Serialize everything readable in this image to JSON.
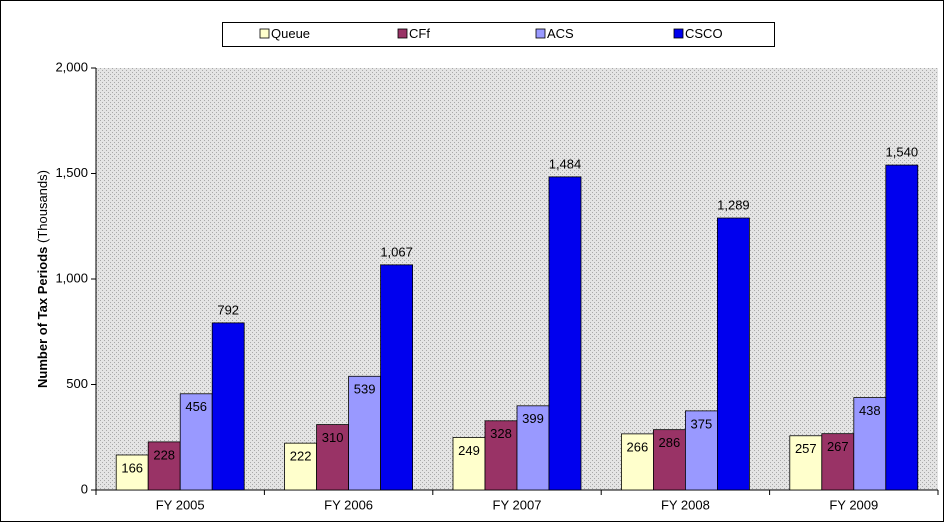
{
  "chart_data": {
    "type": "bar",
    "y_label": "Number of Tax Periods",
    "y_label_unit": "(Thousands)",
    "categories": [
      "FY 2005",
      "FY 2006",
      "FY 2007",
      "FY 2008",
      "FY 2009"
    ],
    "series": [
      {
        "name": "Queue",
        "color": "#ffffcc",
        "values": [
          166,
          222,
          249,
          266,
          257
        ]
      },
      {
        "name": "CFf",
        "color": "#993366",
        "values": [
          228,
          310,
          328,
          286,
          267
        ]
      },
      {
        "name": "ACS",
        "color": "#9999ff",
        "values": [
          456,
          539,
          399,
          375,
          438
        ]
      },
      {
        "name": "CSCO",
        "color": "#0000ee",
        "values": [
          792,
          1067,
          1484,
          1289,
          1540
        ],
        "value_labels": [
          "792",
          "1,067",
          "1,484",
          "1,289",
          "1,540"
        ]
      }
    ],
    "ylim": [
      0,
      2000
    ],
    "yticks": [
      0,
      500,
      {
        "value": 1000,
        "label": "1,000"
      },
      {
        "value": 1500,
        "label": "1,500"
      },
      {
        "value": 2000,
        "label": "2,000"
      }
    ],
    "legend": "top"
  }
}
